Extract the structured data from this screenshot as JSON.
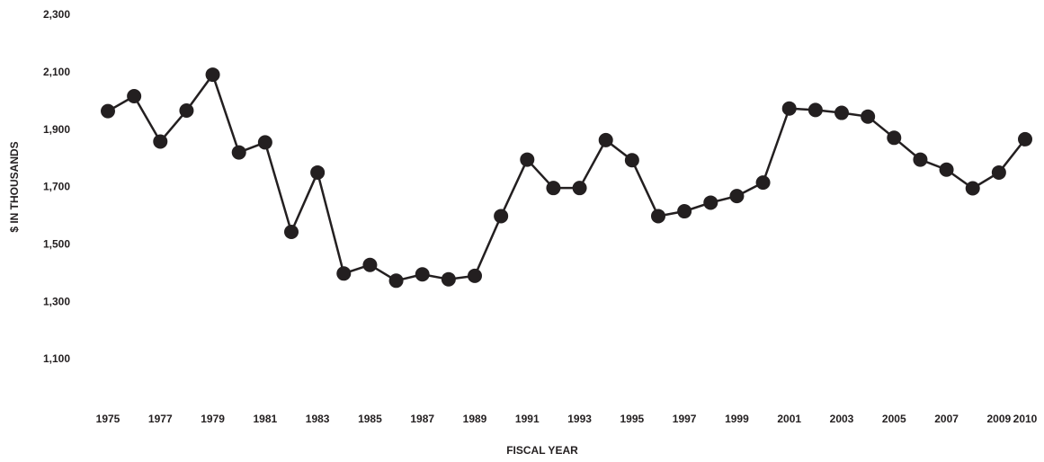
{
  "chart_data": {
    "type": "line",
    "xlabel": "FISCAL YEAR",
    "ylabel": "$ IN THOUSANDS",
    "x": [
      1975,
      1976,
      1977,
      1978,
      1979,
      1980,
      1981,
      1982,
      1983,
      1984,
      1985,
      1986,
      1987,
      1988,
      1989,
      1990,
      1991,
      1992,
      1993,
      1994,
      1995,
      1996,
      1997,
      1998,
      1999,
      2000,
      2001,
      2002,
      2003,
      2004,
      2005,
      2006,
      2007,
      2008,
      2009,
      2010
    ],
    "series": [
      {
        "color": "#231f20",
        "values": [
          1966,
          2018,
          1860,
          1968,
          2093,
          1822,
          1857,
          1545,
          1752,
          1400,
          1430,
          1375,
          1397,
          1380,
          1392,
          1600,
          1797,
          1698,
          1698,
          1865,
          1795,
          1600,
          1617,
          1647,
          1670,
          1717,
          1975,
          1970,
          1960,
          1947,
          1873,
          1797,
          1762,
          1697,
          1752,
          1868
        ]
      }
    ],
    "xlim": [
      1975,
      2010
    ],
    "xticks": [
      1975,
      1977,
      1979,
      1981,
      1983,
      1985,
      1987,
      1989,
      1991,
      1993,
      1995,
      1997,
      1999,
      2001,
      2003,
      2005,
      2007,
      2009,
      2010
    ],
    "ylim": [
      1000,
      2300
    ],
    "yticks": [
      {
        "value": 1100,
        "label": "1,100"
      },
      {
        "value": 1300,
        "label": "1,300"
      },
      {
        "value": 1500,
        "label": "1,500"
      },
      {
        "value": 1700,
        "label": "1,700"
      },
      {
        "value": 1900,
        "label": "1,900"
      },
      {
        "value": 2100,
        "label": "2,100"
      },
      {
        "value": 2300,
        "label": "2,300"
      }
    ],
    "grid": false
  }
}
